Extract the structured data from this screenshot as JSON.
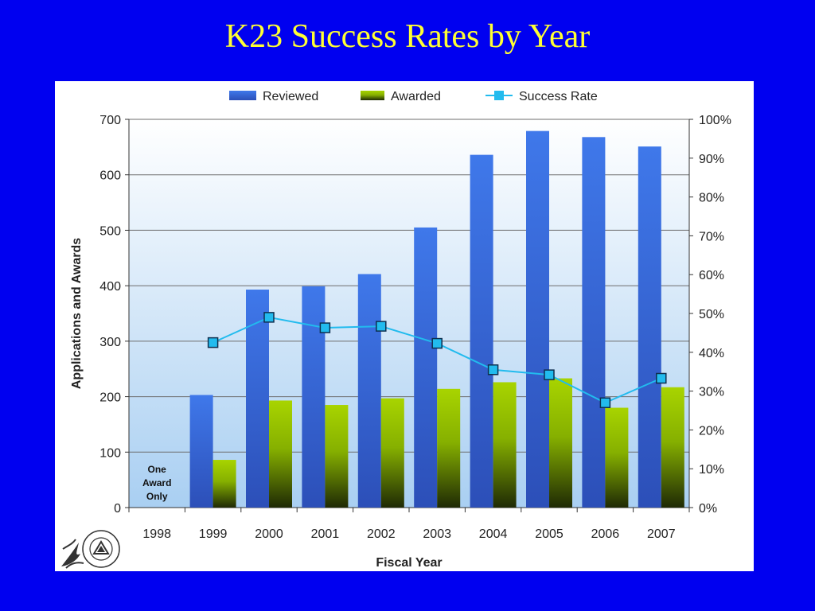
{
  "slide": {
    "title": "K23 Success Rates by Year"
  },
  "chart_data": {
    "type": "bar",
    "categories": [
      "1998",
      "1999",
      "2000",
      "2001",
      "2002",
      "2003",
      "2004",
      "2005",
      "2006",
      "2007"
    ],
    "series": [
      {
        "name": "Reviewed",
        "type": "bar",
        "axis": "left",
        "color": "#3a6ee0",
        "values": [
          null,
          203,
          393,
          399,
          421,
          505,
          636,
          679,
          668,
          651
        ]
      },
      {
        "name": "Awarded",
        "type": "bar",
        "axis": "left",
        "color": "#99cc00",
        "values": [
          null,
          86,
          193,
          185,
          197,
          214,
          226,
          233,
          180,
          217
        ]
      },
      {
        "name": "Success Rate",
        "type": "line",
        "axis": "right",
        "color": "#22bbee",
        "values": [
          null,
          42.5,
          49.0,
          46.3,
          46.7,
          42.3,
          35.5,
          34.2,
          27.0,
          33.3
        ]
      }
    ],
    "legend": {
      "position": "top",
      "items": [
        "Reviewed",
        "Awarded",
        "Success Rate"
      ]
    },
    "xlabel": "Fiscal Year",
    "ylabel": "Applications and Awards",
    "ylim": [
      0,
      700
    ],
    "y_ticks": [
      0,
      100,
      200,
      300,
      400,
      500,
      600,
      700
    ],
    "y2lim": [
      0,
      100
    ],
    "y2_ticks": [
      "0%",
      "10%",
      "20%",
      "30%",
      "40%",
      "50%",
      "60%",
      "70%",
      "80%",
      "90%",
      "100%"
    ],
    "grid": true,
    "annotation": {
      "category": "1998",
      "lines": [
        "One",
        "Award",
        "Only"
      ]
    }
  }
}
